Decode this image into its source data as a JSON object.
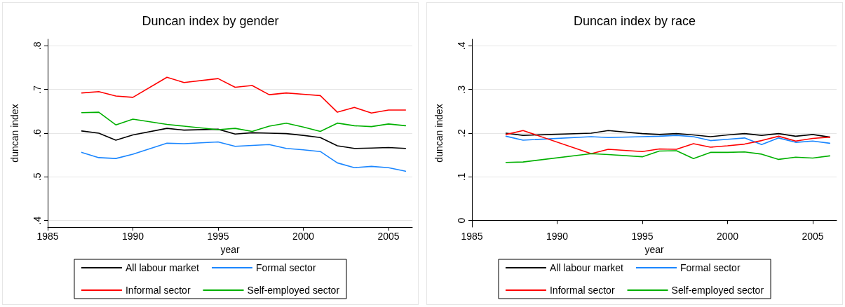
{
  "chart_data": [
    {
      "type": "line",
      "title": "Duncan index by gender",
      "xlabel": "year",
      "ylabel": "duncan index",
      "x": [
        1987,
        1988,
        1989,
        1990,
        1992,
        1993,
        1995,
        1996,
        1997,
        1998,
        1999,
        2000,
        2001,
        2002,
        2003,
        2004,
        2005,
        2006
      ],
      "series": [
        {
          "name": "All labour market",
          "color": "#000000",
          "values": [
            0.605,
            0.6,
            0.584,
            0.596,
            0.611,
            0.607,
            0.609,
            0.598,
            0.601,
            0.6,
            0.599,
            0.595,
            0.59,
            0.571,
            0.565,
            0.566,
            0.567,
            0.565
          ]
        },
        {
          "name": "Formal sector",
          "color": "#1a86ff",
          "values": [
            0.556,
            0.544,
            0.542,
            0.552,
            0.577,
            0.576,
            0.58,
            0.57,
            0.572,
            0.574,
            0.565,
            0.562,
            0.558,
            0.532,
            0.521,
            0.524,
            0.521,
            0.513
          ]
        },
        {
          "name": "Informal sector",
          "color": "#ff0000",
          "values": [
            0.692,
            0.695,
            0.685,
            0.682,
            0.728,
            0.716,
            0.725,
            0.705,
            0.709,
            0.688,
            0.692,
            0.689,
            0.686,
            0.648,
            0.659,
            0.646,
            0.653,
            0.653
          ]
        },
        {
          "name": "Self-employed sector",
          "color": "#00b000",
          "values": [
            0.647,
            0.648,
            0.619,
            0.632,
            0.62,
            0.616,
            0.608,
            0.611,
            0.604,
            0.616,
            0.623,
            0.614,
            0.604,
            0.623,
            0.617,
            0.615,
            0.621,
            0.617
          ]
        }
      ],
      "xlim": [
        1985,
        2006.4
      ],
      "xticks": [
        1985,
        1990,
        1995,
        2000,
        2005
      ],
      "ylim": [
        0.385,
        0.815
      ],
      "yticks": [
        {
          "value": 0.4,
          "label": ".4"
        },
        {
          "value": 0.5,
          "label": ".5"
        },
        {
          "value": 0.6,
          "label": ".6"
        },
        {
          "value": 0.7,
          "label": ".7"
        },
        {
          "value": 0.8,
          "label": ".8"
        }
      ],
      "grid": "y",
      "legend": "bottom",
      "marker": "none",
      "line_style": "solid"
    },
    {
      "type": "line",
      "title": "Duncan index by race",
      "xlabel": "year",
      "ylabel": "duncan index",
      "x": [
        1987,
        1988,
        1992,
        1993,
        1995,
        1996,
        1997,
        1998,
        1999,
        2000,
        2001,
        2002,
        2003,
        2004,
        2005,
        2006
      ],
      "series": [
        {
          "name": "All labour market",
          "color": "#000000",
          "values": [
            0.2,
            0.195,
            0.2,
            0.206,
            0.199,
            0.197,
            0.199,
            0.196,
            0.192,
            0.196,
            0.199,
            0.195,
            0.199,
            0.193,
            0.197,
            0.191
          ]
        },
        {
          "name": "Formal sector",
          "color": "#1a86ff",
          "values": [
            0.193,
            0.184,
            0.192,
            0.19,
            0.192,
            0.193,
            0.195,
            0.192,
            0.183,
            0.186,
            0.189,
            0.174,
            0.189,
            0.179,
            0.182,
            0.177
          ]
        },
        {
          "name": "Informal sector",
          "color": "#ff0000",
          "values": [
            0.197,
            0.206,
            0.153,
            0.163,
            0.158,
            0.164,
            0.163,
            0.176,
            0.168,
            0.171,
            0.175,
            0.183,
            0.193,
            0.182,
            0.188,
            0.191
          ]
        },
        {
          "name": "Self-employed sector",
          "color": "#00b000",
          "values": [
            0.133,
            0.134,
            0.153,
            0.151,
            0.146,
            0.159,
            0.16,
            0.142,
            0.156,
            0.156,
            0.157,
            0.152,
            0.14,
            0.145,
            0.143,
            0.148
          ]
        }
      ],
      "xlim": [
        1985,
        2006.4
      ],
      "xticks": [
        1985,
        1990,
        1995,
        2000,
        2005
      ],
      "ylim": [
        -0.015,
        0.415
      ],
      "yticks": [
        {
          "value": 0,
          "label": "0"
        },
        {
          "value": 0.1,
          "label": ".1"
        },
        {
          "value": 0.2,
          "label": ".2"
        },
        {
          "value": 0.3,
          "label": ".3"
        },
        {
          "value": 0.4,
          "label": ".4"
        }
      ],
      "grid": "y",
      "legend": "bottom",
      "marker": "none",
      "line_style": "solid"
    }
  ]
}
